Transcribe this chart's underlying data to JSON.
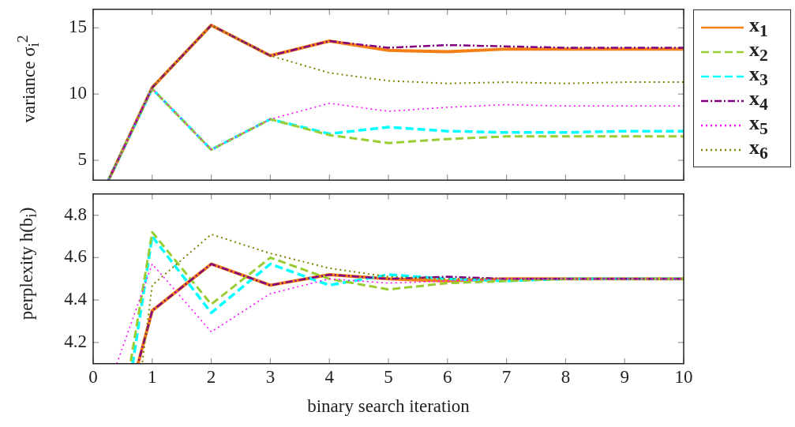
{
  "chart_data": [
    {
      "type": "line",
      "ylabel": "variance σ$_{i}$$^{2}$",
      "xlim": [
        0,
        10
      ],
      "xticks": [
        0,
        1,
        2,
        3,
        4,
        5,
        6,
        7,
        8,
        9,
        10
      ],
      "ylim": [
        3.5,
        16.4
      ],
      "yticks": [
        5,
        10,
        15
      ],
      "tick_labels": "y",
      "legend": "top right",
      "marker": "none",
      "series": [
        {
          "name": "x$_{1}$",
          "color": "#f57f17",
          "line_style": "solid",
          "x": [
            0.26,
            1,
            2,
            3,
            4,
            5,
            6,
            7,
            8,
            9,
            10
          ],
          "values": [
            3.5,
            10.5,
            15.2,
            12.9,
            14.0,
            13.3,
            13.2,
            13.4,
            13.4,
            13.4,
            13.4
          ]
        },
        {
          "name": "x$_{2}$",
          "color": "#9acd32",
          "line_style": "dashed",
          "x": [
            0.26,
            1,
            2,
            3,
            4,
            5,
            6,
            7,
            8,
            9,
            10
          ],
          "values": [
            3.5,
            10.4,
            5.8,
            8.1,
            6.9,
            6.3,
            6.6,
            6.8,
            6.8,
            6.8,
            6.8
          ]
        },
        {
          "name": "x$_{3}$",
          "color": "#00ffff",
          "line_style": "dashed",
          "x": [
            0.26,
            1,
            2,
            3,
            4,
            5,
            6,
            7,
            8,
            9,
            10
          ],
          "values": [
            3.5,
            10.4,
            5.8,
            8.1,
            7.0,
            7.5,
            7.2,
            7.1,
            7.1,
            7.2,
            7.2
          ]
        },
        {
          "name": "x$_{4}$",
          "color": "#800080",
          "line_style": "dashdot",
          "x": [
            0.26,
            1,
            2,
            3,
            4,
            5,
            6,
            7,
            8,
            9,
            10
          ],
          "values": [
            3.5,
            10.5,
            15.2,
            12.9,
            14.0,
            13.5,
            13.7,
            13.6,
            13.5,
            13.5,
            13.5
          ]
        },
        {
          "name": "x$_{5}$",
          "color": "#ff00ff",
          "line_style": "dotted",
          "x": [
            0.26,
            1,
            2,
            3,
            4,
            5,
            6,
            7,
            8,
            9,
            10
          ],
          "values": [
            3.5,
            10.4,
            5.8,
            8.1,
            9.3,
            8.7,
            9.0,
            9.2,
            9.1,
            9.1,
            9.1
          ]
        },
        {
          "name": "x$_{6}$",
          "color": "#808000",
          "line_style": "dotted",
          "x": [
            0.26,
            1,
            2,
            3,
            4,
            5,
            6,
            7,
            8,
            9,
            10
          ],
          "values": [
            3.5,
            10.5,
            15.2,
            12.9,
            11.6,
            11.0,
            10.8,
            10.9,
            10.8,
            10.9,
            10.9
          ]
        }
      ]
    },
    {
      "type": "line",
      "xlabel": "binary search iteration",
      "ylabel": "perplexity h(b$_{i}$)",
      "xlim": [
        0,
        10
      ],
      "xticks": [
        0,
        1,
        2,
        3,
        4,
        5,
        6,
        7,
        8,
        9,
        10
      ],
      "ylim": [
        4.1,
        4.9
      ],
      "yticks": [
        4.2,
        4.4,
        4.6,
        4.8
      ],
      "marker": "none",
      "series": [
        {
          "color": "#f57f17",
          "line_style": "solid",
          "x": [
            0.76,
            1,
            2,
            3,
            4,
            5,
            6,
            7,
            8,
            9,
            10
          ],
          "values": [
            4.1,
            4.35,
            4.57,
            4.47,
            4.52,
            4.5,
            4.49,
            4.5,
            4.5,
            4.5,
            4.5
          ]
        },
        {
          "color": "#9acd32",
          "line_style": "dashed",
          "x": [
            0.63,
            1,
            2,
            3,
            4,
            5,
            6,
            7,
            8,
            9,
            10
          ],
          "values": [
            4.1,
            4.72,
            4.38,
            4.6,
            4.5,
            4.45,
            4.48,
            4.49,
            4.5,
            4.5,
            4.5
          ]
        },
        {
          "color": "#00ffff",
          "line_style": "dashed",
          "x": [
            0.67,
            1,
            2,
            3,
            4,
            5,
            6,
            7,
            8,
            9,
            10
          ],
          "values": [
            4.1,
            4.7,
            4.34,
            4.57,
            4.47,
            4.52,
            4.5,
            4.49,
            4.5,
            4.5,
            4.5
          ]
        },
        {
          "color": "#800080",
          "line_style": "dashdot",
          "x": [
            0.76,
            1,
            2,
            3,
            4,
            5,
            6,
            7,
            8,
            9,
            10
          ],
          "values": [
            4.1,
            4.35,
            4.57,
            4.47,
            4.52,
            4.5,
            4.51,
            4.5,
            4.5,
            4.5,
            4.5
          ]
        },
        {
          "color": "#ff00ff",
          "line_style": "dotted",
          "x": [
            0.4,
            1,
            2,
            3,
            4,
            5,
            6,
            7,
            8,
            9,
            10
          ],
          "values": [
            4.1,
            4.57,
            4.25,
            4.43,
            4.5,
            4.48,
            4.49,
            4.5,
            4.5,
            4.5,
            4.5
          ]
        },
        {
          "color": "#808000",
          "line_style": "dotted",
          "x": [
            0.83,
            1,
            2,
            3,
            4,
            5,
            6,
            7,
            8,
            9,
            10
          ],
          "values": [
            4.1,
            4.47,
            4.71,
            4.62,
            4.55,
            4.51,
            4.5,
            4.5,
            4.5,
            4.5,
            4.5
          ]
        }
      ]
    }
  ]
}
